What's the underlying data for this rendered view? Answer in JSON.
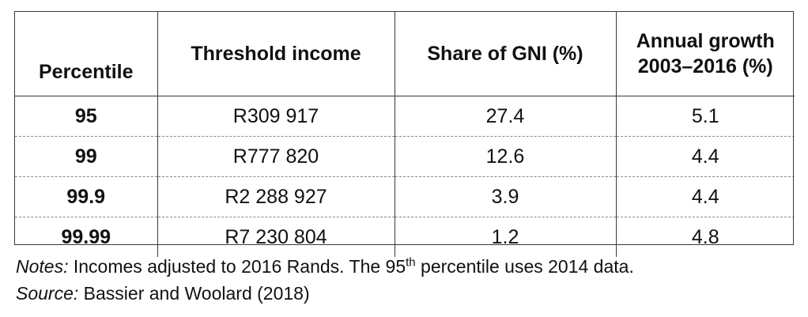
{
  "table": {
    "headers": {
      "percentile": "Percentile",
      "threshold": "Threshold income",
      "share": "Share of GNI (%)",
      "growth_line1": "Annual growth",
      "growth_line2": "2003–2016 (%)"
    },
    "rows": [
      {
        "percentile": "95",
        "threshold": "R309 917",
        "share": "27.4",
        "growth": "5.1"
      },
      {
        "percentile": "99",
        "threshold": "R777 820",
        "share": "12.6",
        "growth": "4.4"
      },
      {
        "percentile": "99.9",
        "threshold": "R2 288 927",
        "share": "3.9",
        "growth": "4.4"
      },
      {
        "percentile": "99.99",
        "threshold": "R7 230 804",
        "share": "1.2",
        "growth": "4.8"
      }
    ]
  },
  "notes": {
    "label": "Notes:",
    "text_before": " Incomes adjusted to 2016 Rands. The 95",
    "superscript": "th",
    "text_after": " percentile uses 2014 data.",
    "source_label": "Source:",
    "source_text": " Bassier and Woolard (2018)"
  }
}
